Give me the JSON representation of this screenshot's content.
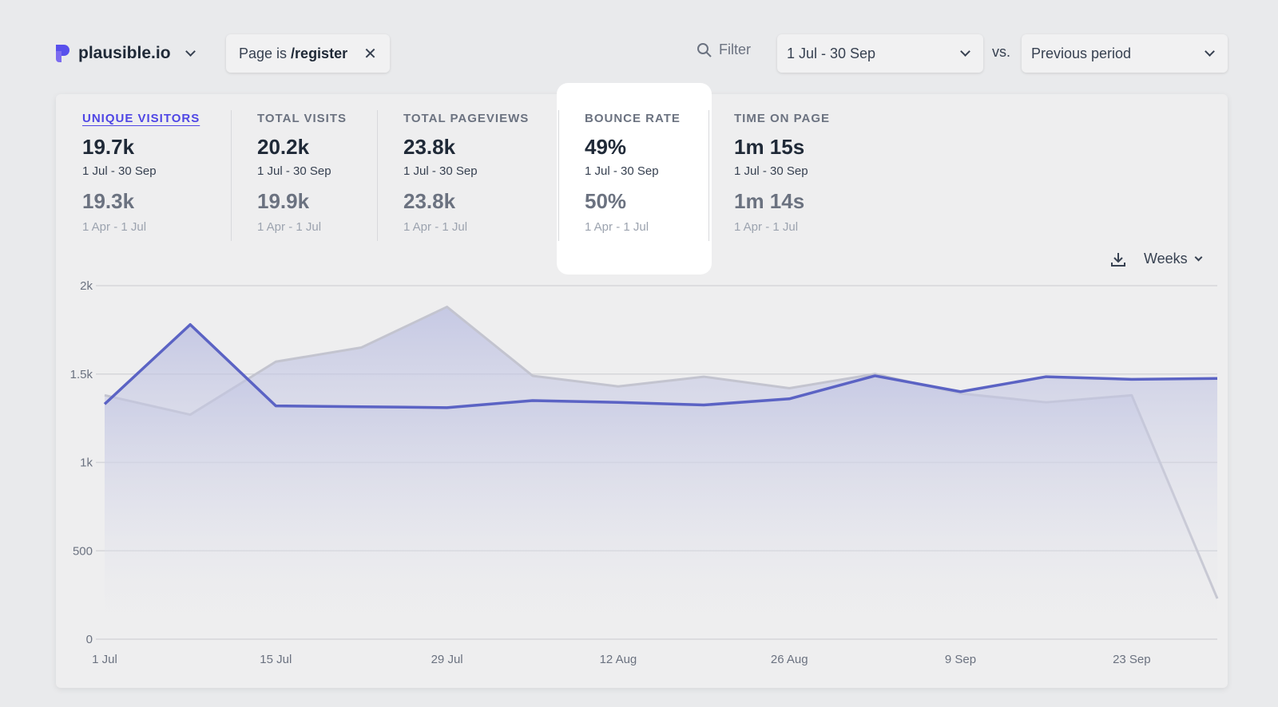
{
  "header": {
    "site": "plausible.io",
    "filter_prefix": "Page is ",
    "filter_value": "/register",
    "filter_label": "Filter",
    "date_range": "1 Jul - 30 Sep",
    "vs": "vs.",
    "comparison": "Previous period"
  },
  "stats": [
    {
      "label": "UNIQUE VISITORS",
      "value": "19.7k",
      "period": "1 Jul - 30 Sep",
      "prev_value": "19.3k",
      "prev_period": "1 Apr - 1 Jul",
      "active": true
    },
    {
      "label": "TOTAL VISITS",
      "value": "20.2k",
      "period": "1 Jul - 30 Sep",
      "prev_value": "19.9k",
      "prev_period": "1 Apr - 1 Jul"
    },
    {
      "label": "TOTAL PAGEVIEWS",
      "value": "23.8k",
      "period": "1 Jul - 30 Sep",
      "prev_value": "23.8k",
      "prev_period": "1 Apr - 1 Jul"
    },
    {
      "label": "BOUNCE RATE",
      "value": "49%",
      "period": "1 Jul - 30 Sep",
      "prev_value": "50%",
      "prev_period": "1 Apr - 1 Jul"
    },
    {
      "label": "TIME ON PAGE",
      "value": "1m 15s",
      "period": "1 Jul - 30 Sep",
      "prev_value": "1m 14s",
      "prev_period": "1 Apr - 1 Jul"
    }
  ],
  "interval": "Weeks",
  "chart_data": {
    "type": "line",
    "x": [
      "1 Jul",
      "8 Jul",
      "15 Jul",
      "22 Jul",
      "29 Jul",
      "5 Aug",
      "12 Aug",
      "19 Aug",
      "26 Aug",
      "2 Sep",
      "9 Sep",
      "16 Sep",
      "23 Sep",
      "30 Sep"
    ],
    "xticks": [
      "1 Jul",
      "15 Jul",
      "29 Jul",
      "12 Aug",
      "26 Aug",
      "9 Sep",
      "23 Sep"
    ],
    "yticks": [
      "0",
      "500",
      "1k",
      "1.5k",
      "2k"
    ],
    "ylim": [
      0,
      2000
    ],
    "grid": true,
    "series": [
      {
        "values": [
          1330,
          1780,
          1320,
          1315,
          1310,
          1350,
          1340,
          1325,
          1360,
          1490,
          1400,
          1485,
          1470,
          1475
        ],
        "color": "#5b63c4"
      },
      {
        "values": [
          1380,
          1270,
          1570,
          1650,
          1880,
          1490,
          1430,
          1485,
          1420,
          1500,
          1390,
          1340,
          1380,
          230
        ],
        "color": "#c3c4cf"
      }
    ]
  }
}
